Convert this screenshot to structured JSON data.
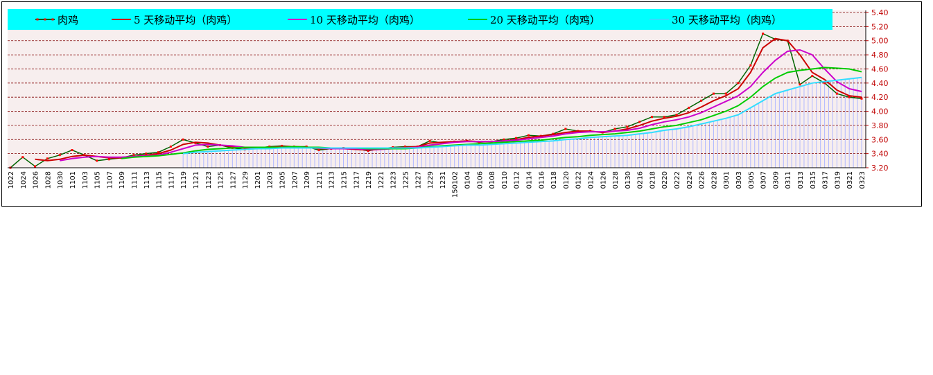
{
  "chart_data": {
    "type": "line",
    "title": "",
    "xlabel": "",
    "ylabel": "",
    "ylim": [
      3.2,
      5.4
    ],
    "yticks": [
      "3.20",
      "3.40",
      "3.60",
      "3.80",
      "4.00",
      "4.20",
      "4.40",
      "4.60",
      "4.80",
      "5.00",
      "5.20",
      "5.40"
    ],
    "ytick_values": [
      3.2,
      3.4,
      3.6,
      3.8,
      4.0,
      4.2,
      4.4,
      4.6,
      4.8,
      5.0,
      5.2,
      5.4
    ],
    "grid": "horizontal dashed",
    "legend_position": "top",
    "legend_background": "#00ffff",
    "x_categories": [
      "1022",
      "1024",
      "1026",
      "1028",
      "1030",
      "1101",
      "1103",
      "1105",
      "1107",
      "1109",
      "1111",
      "1113",
      "1115",
      "1117",
      "1119",
      "1121",
      "1123",
      "1125",
      "1127",
      "1129",
      "1201",
      "1203",
      "1205",
      "1207",
      "1209",
      "1211",
      "1213",
      "1215",
      "1217",
      "1219",
      "1221",
      "1223",
      "1225",
      "1227",
      "1229",
      "1231",
      "150102",
      "0104",
      "0106",
      "0108",
      "0110",
      "0112",
      "0114",
      "0116",
      "0118",
      "0120",
      "0122",
      "0124",
      "0126",
      "0128",
      "0130",
      "0216",
      "0218",
      "0220",
      "0222",
      "0224",
      "0226",
      "0228",
      "0301",
      "0303",
      "0305",
      "0307",
      "0309",
      "0311",
      "0313",
      "0315",
      "0317",
      "0319",
      "0321",
      "0323"
    ],
    "series": [
      {
        "name": "肉鸡",
        "color": "#006400",
        "marker_color": "#ff0000",
        "values": [
          3.2,
          3.35,
          3.22,
          3.33,
          3.38,
          3.45,
          3.38,
          3.3,
          3.32,
          3.34,
          3.38,
          3.4,
          3.42,
          3.5,
          3.6,
          3.55,
          3.5,
          3.52,
          3.48,
          3.46,
          3.48,
          3.5,
          3.51,
          3.5,
          3.5,
          3.45,
          3.47,
          3.48,
          3.47,
          3.44,
          3.47,
          3.49,
          3.5,
          3.5,
          3.58,
          3.55,
          3.57,
          3.58,
          3.56,
          3.57,
          3.6,
          3.62,
          3.66,
          3.65,
          3.68,
          3.75,
          3.72,
          3.72,
          3.7,
          3.75,
          3.78,
          3.85,
          3.92,
          3.92,
          3.95,
          4.05,
          4.15,
          4.25,
          4.25,
          4.4,
          4.65,
          5.1,
          5.02,
          5.0,
          4.38,
          4.5,
          4.4,
          4.25,
          4.2,
          4.18
        ]
      },
      {
        "name": "5 天移动平均（肉鸡）",
        "color": "#cc0000",
        "values": [
          null,
          null,
          3.32,
          3.3,
          3.32,
          3.36,
          3.38,
          3.36,
          3.34,
          3.34,
          3.36,
          3.38,
          3.4,
          3.45,
          3.53,
          3.56,
          3.55,
          3.52,
          3.5,
          3.48,
          3.48,
          3.49,
          3.5,
          3.5,
          3.49,
          3.47,
          3.47,
          3.47,
          3.46,
          3.45,
          3.46,
          3.48,
          3.49,
          3.5,
          3.55,
          3.56,
          3.57,
          3.58,
          3.57,
          3.57,
          3.58,
          3.6,
          3.63,
          3.65,
          3.67,
          3.7,
          3.72,
          3.72,
          3.7,
          3.72,
          3.75,
          3.8,
          3.86,
          3.9,
          3.93,
          3.98,
          4.06,
          4.15,
          4.22,
          4.32,
          4.55,
          4.9,
          5.03,
          5.0,
          4.8,
          4.55,
          4.45,
          4.3,
          4.22,
          4.2
        ]
      },
      {
        "name": "10 天移动平均（肉鸡）",
        "color": "#cc00cc",
        "values": [
          null,
          null,
          null,
          null,
          3.3,
          3.33,
          3.35,
          3.36,
          3.35,
          3.35,
          3.36,
          3.37,
          3.38,
          3.42,
          3.47,
          3.52,
          3.53,
          3.52,
          3.51,
          3.49,
          3.48,
          3.49,
          3.49,
          3.49,
          3.49,
          3.48,
          3.47,
          3.47,
          3.47,
          3.46,
          3.46,
          3.47,
          3.48,
          3.49,
          3.52,
          3.54,
          3.56,
          3.57,
          3.57,
          3.57,
          3.58,
          3.59,
          3.61,
          3.63,
          3.65,
          3.68,
          3.7,
          3.71,
          3.71,
          3.72,
          3.73,
          3.76,
          3.81,
          3.85,
          3.88,
          3.92,
          3.98,
          4.06,
          4.14,
          4.22,
          4.35,
          4.55,
          4.72,
          4.85,
          4.87,
          4.8,
          4.6,
          4.42,
          4.32,
          4.28
        ]
      },
      {
        "name": "20 天移动平均（肉鸡）",
        "color": "#00cc00",
        "values": [
          null,
          null,
          null,
          null,
          null,
          null,
          null,
          null,
          null,
          3.33,
          3.35,
          3.36,
          3.37,
          3.39,
          3.41,
          3.44,
          3.46,
          3.47,
          3.48,
          3.49,
          3.49,
          3.49,
          3.49,
          3.5,
          3.49,
          3.49,
          3.48,
          3.48,
          3.48,
          3.47,
          3.47,
          3.47,
          3.47,
          3.48,
          3.5,
          3.51,
          3.52,
          3.53,
          3.54,
          3.55,
          3.56,
          3.57,
          3.58,
          3.59,
          3.61,
          3.63,
          3.64,
          3.66,
          3.67,
          3.68,
          3.7,
          3.72,
          3.75,
          3.78,
          3.8,
          3.84,
          3.88,
          3.94,
          4.0,
          4.08,
          4.2,
          4.35,
          4.47,
          4.55,
          4.58,
          4.6,
          4.62,
          4.61,
          4.6,
          4.56
        ]
      },
      {
        "name": "30 天移动平均（肉鸡）",
        "color": "#33ddff",
        "values": [
          null,
          null,
          null,
          null,
          null,
          null,
          null,
          null,
          null,
          null,
          null,
          null,
          null,
          null,
          3.4,
          3.42,
          3.43,
          3.44,
          3.45,
          3.46,
          3.47,
          3.47,
          3.48,
          3.48,
          3.48,
          3.48,
          3.48,
          3.48,
          3.48,
          3.48,
          3.48,
          3.48,
          3.48,
          3.48,
          3.49,
          3.5,
          3.51,
          3.52,
          3.52,
          3.53,
          3.54,
          3.55,
          3.56,
          3.57,
          3.58,
          3.6,
          3.61,
          3.63,
          3.64,
          3.65,
          3.66,
          3.68,
          3.7,
          3.73,
          3.75,
          3.78,
          3.82,
          3.86,
          3.9,
          3.95,
          4.05,
          4.15,
          4.25,
          4.3,
          4.35,
          4.4,
          4.42,
          4.44,
          4.46,
          4.48
        ]
      }
    ]
  }
}
